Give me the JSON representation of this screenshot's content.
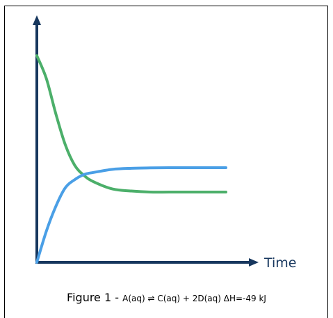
{
  "chart_data": {
    "type": "line",
    "xlabel": "Time",
    "ylabel": "",
    "xlim": [
      0,
      100
    ],
    "ylim": [
      0,
      100
    ],
    "grid": false,
    "series": [
      {
        "color": "#4caf6a",
        "x": [
          0,
          5,
          10,
          15,
          20,
          25,
          30,
          40,
          50,
          60,
          70,
          80,
          90,
          100
        ],
        "y": [
          100,
          89,
          72,
          57,
          47,
          42,
          39,
          35.5,
          34.5,
          34,
          34,
          34,
          34,
          34
        ]
      },
      {
        "color": "#4a9fe6",
        "x": [
          0,
          5,
          10,
          15,
          20,
          25,
          30,
          40,
          50,
          60,
          70,
          80,
          90,
          100
        ],
        "y": [
          0,
          15,
          27,
          36,
          40,
          42.5,
          43.5,
          45,
          45.5,
          45.7,
          45.8,
          45.8,
          45.8,
          45.8
        ]
      }
    ],
    "axis_color": "#17375e"
  },
  "caption": {
    "title": "Figure 1 - ",
    "equation": "A(aq) ⇌ C(aq) + 2D(aq) ΔH=-49 kJ"
  }
}
